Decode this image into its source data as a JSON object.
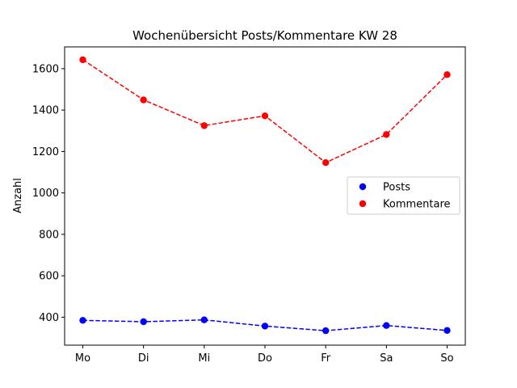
{
  "chart_data": {
    "type": "line",
    "title": "Wochenübersicht Posts/Kommentare KW 28",
    "xlabel": "",
    "ylabel": "Anzahl",
    "categories": [
      "Mo",
      "Di",
      "Mi",
      "Do",
      "Fr",
      "Sa",
      "So"
    ],
    "ylim": [
      265,
      1705
    ],
    "yticks": [
      400,
      600,
      800,
      1000,
      1200,
      1400,
      1600
    ],
    "grid": false,
    "legend_position": "center-right",
    "series": [
      {
        "name": "Posts",
        "color": "#0000ff",
        "line_style": "dashed",
        "marker": "circle",
        "values": [
          385,
          378,
          387,
          357,
          335,
          360,
          336
        ]
      },
      {
        "name": "Kommentare",
        "color": "#ff0000",
        "line_style": "dashed",
        "marker": "circle",
        "values": [
          1643,
          1449,
          1325,
          1372,
          1146,
          1282,
          1571
        ]
      }
    ]
  }
}
